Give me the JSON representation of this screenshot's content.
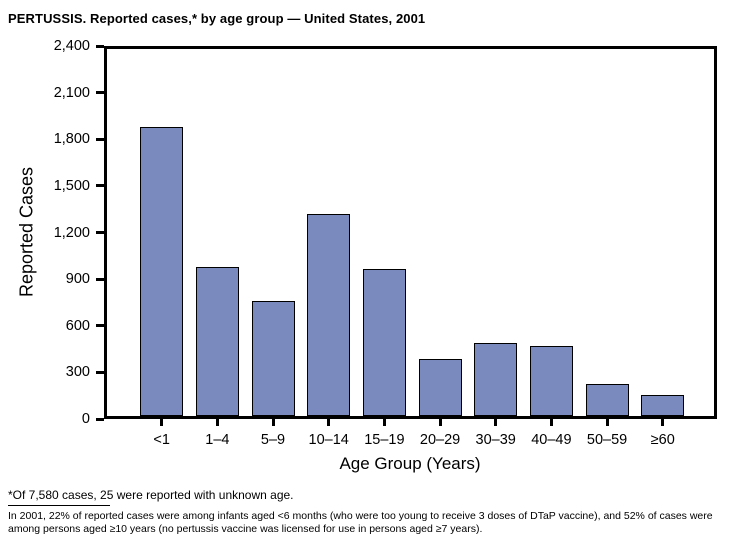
{
  "page": {
    "footnote1": "*Of 7,580 cases, 25 were reported with unknown age.",
    "footnote2": "In 2001, 22% of reported cases were among infants aged <6 months (who were too young to receive 3 doses of DTaP vaccine), and 52% of cases were among persons aged ≥10 years (no pertussis vaccine was licensed for use in persons aged ≥7 years)."
  },
  "chart_data": {
    "type": "bar",
    "title": "PERTUSSIS. Reported cases,* by age group — United States, 2001",
    "categories": [
      "<1",
      "1–4",
      "5–9",
      "10–14",
      "15–19",
      "20–29",
      "30–39",
      "40–49",
      "50–59",
      "≥60"
    ],
    "values": [
      1890,
      975,
      755,
      1320,
      960,
      375,
      475,
      455,
      210,
      140
    ],
    "xlabel": "Age Group (Years)",
    "ylabel": "Reported Cases",
    "ylim": [
      0,
      2400
    ],
    "ytick_step": 300,
    "grid": false,
    "legend": "none",
    "bar_color": "#7B8ABE",
    "bar_border_color": "#000000",
    "axis_color": "#000000"
  }
}
